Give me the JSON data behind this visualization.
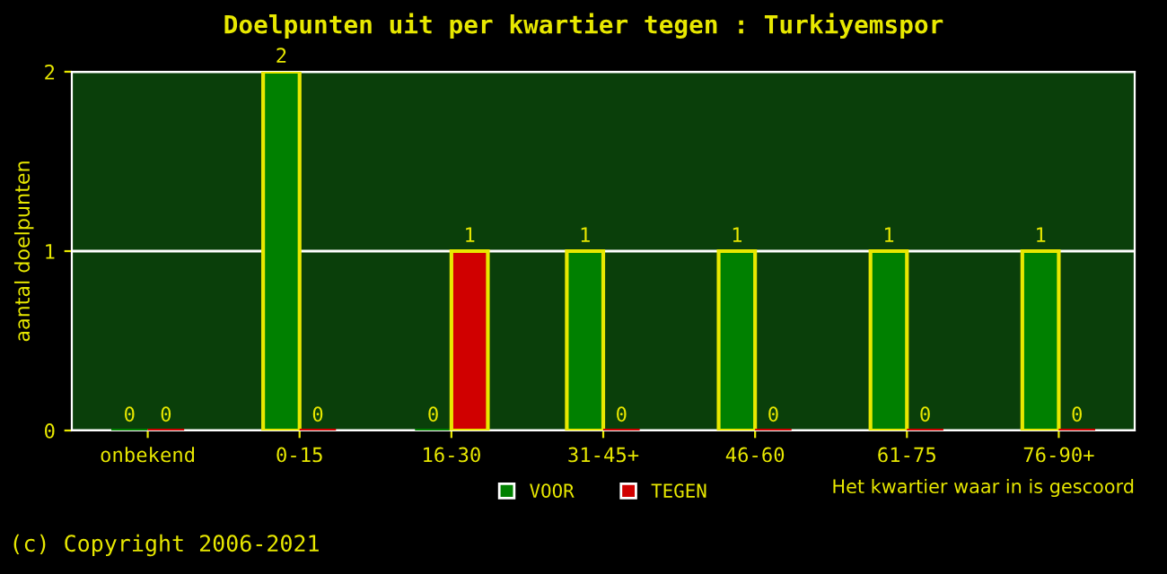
{
  "chart_data": {
    "type": "bar",
    "title": "Doelpunten uit per kwartier tegen : Turkiyemspor",
    "ylabel": "aantal doelpunten",
    "xlabel": "Het kwartier waar in is gescoord",
    "categories": [
      "onbekend",
      "0-15",
      "16-30",
      "31-45+",
      "46-60",
      "61-75",
      "76-90+"
    ],
    "series": [
      {
        "name": "VOOR",
        "color": "#008000",
        "values": [
          0,
          2,
          0,
          1,
          1,
          1,
          1
        ]
      },
      {
        "name": "TEGEN",
        "color": "#d00000",
        "values": [
          0,
          0,
          1,
          0,
          0,
          0,
          0
        ]
      }
    ],
    "ylim": [
      0,
      2
    ],
    "yticks": [
      0,
      1,
      2
    ],
    "grid": "y",
    "legend": "bottom",
    "data_labels": true,
    "annotations": [
      "(c) Copyright 2006-2021"
    ]
  }
}
